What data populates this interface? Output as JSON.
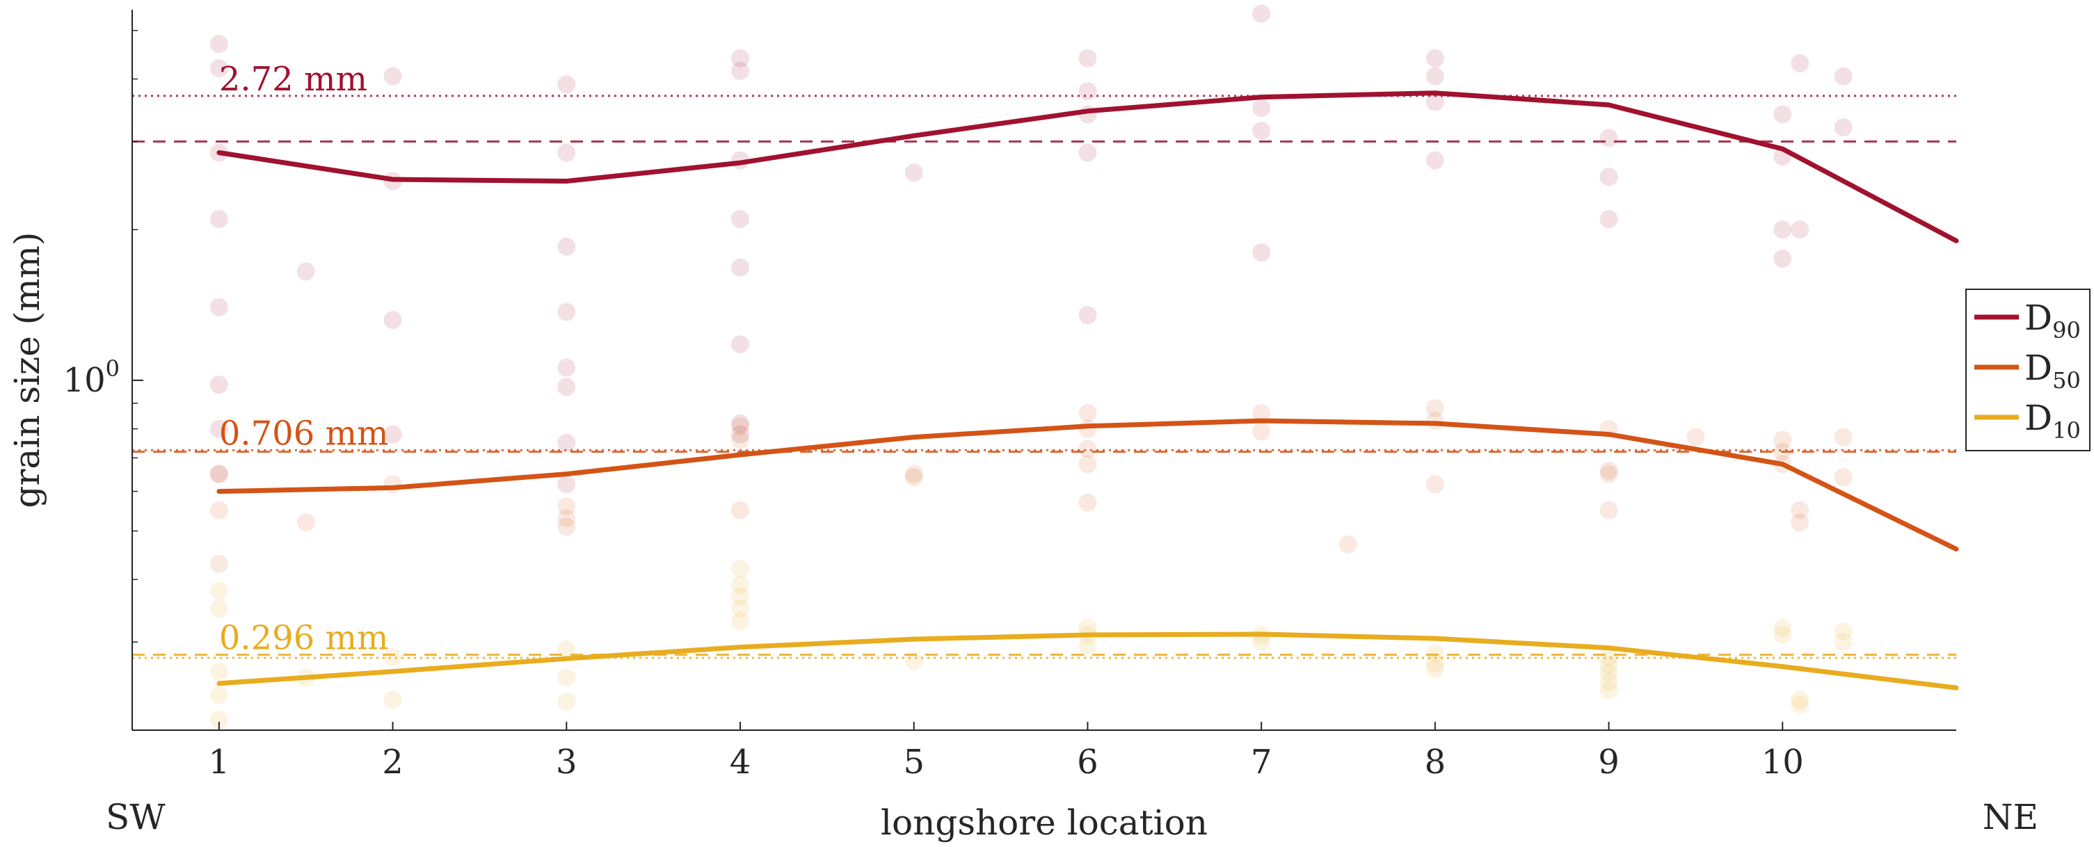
{
  "chart_data": {
    "type": "line",
    "title": "",
    "xlabel": "longshore location",
    "ylabel": "grain size (mm)",
    "x_end_labels": {
      "left": "SW",
      "right": "NE"
    },
    "x": [
      1,
      2,
      3,
      4,
      5,
      6,
      7,
      8,
      9,
      10,
      11
    ],
    "x_ticks": [
      1,
      2,
      3,
      4,
      5,
      6,
      7,
      8,
      9,
      10
    ],
    "xlim": [
      0.5,
      11
    ],
    "y_scale": "log",
    "ylim": [
      0.2,
      5.5
    ],
    "y_ticks": [
      {
        "value": 1,
        "label_base": "10",
        "label_exp": "0"
      }
    ],
    "grid": false,
    "legend_position": "right",
    "series": [
      {
        "key": "D90",
        "name_base": "D",
        "name_sub": "90",
        "color": "#a0122f",
        "values": [
          2.85,
          2.52,
          2.5,
          2.72,
          3.08,
          3.45,
          3.68,
          3.75,
          3.55,
          2.9,
          1.9
        ],
        "reference": {
          "label": "2.72 mm",
          "dashed_value": 3.0,
          "dotted_value": 3.7
        },
        "samples": [
          {
            "x": 1,
            "y": 4.7
          },
          {
            "x": 1,
            "y": 4.2
          },
          {
            "x": 1,
            "y": 2.85
          },
          {
            "x": 1,
            "y": 2.1
          },
          {
            "x": 1,
            "y": 1.4
          },
          {
            "x": 1,
            "y": 0.98
          },
          {
            "x": 1,
            "y": 0.8
          },
          {
            "x": 1,
            "y": 0.65
          },
          {
            "x": 1.5,
            "y": 1.65
          },
          {
            "x": 2,
            "y": 4.05
          },
          {
            "x": 2,
            "y": 2.5
          },
          {
            "x": 2,
            "y": 1.32
          },
          {
            "x": 2,
            "y": 0.78
          },
          {
            "x": 3,
            "y": 3.9
          },
          {
            "x": 3,
            "y": 2.85
          },
          {
            "x": 3,
            "y": 1.85
          },
          {
            "x": 3,
            "y": 1.37
          },
          {
            "x": 3,
            "y": 1.06
          },
          {
            "x": 3,
            "y": 0.97
          },
          {
            "x": 3,
            "y": 0.75
          },
          {
            "x": 3,
            "y": 0.62
          },
          {
            "x": 4,
            "y": 4.4
          },
          {
            "x": 4,
            "y": 4.15
          },
          {
            "x": 4,
            "y": 2.75
          },
          {
            "x": 4,
            "y": 2.1
          },
          {
            "x": 4,
            "y": 1.68
          },
          {
            "x": 4,
            "y": 1.18
          },
          {
            "x": 4,
            "y": 0.82
          },
          {
            "x": 4,
            "y": 0.78
          },
          {
            "x": 5,
            "y": 2.6
          },
          {
            "x": 6,
            "y": 4.4
          },
          {
            "x": 6,
            "y": 3.78
          },
          {
            "x": 6,
            "y": 3.4
          },
          {
            "x": 6,
            "y": 2.85
          },
          {
            "x": 6,
            "y": 1.35
          },
          {
            "x": 7,
            "y": 5.4
          },
          {
            "x": 7,
            "y": 3.5
          },
          {
            "x": 7,
            "y": 3.15
          },
          {
            "x": 7,
            "y": 1.8
          },
          {
            "x": 8,
            "y": 4.4
          },
          {
            "x": 8,
            "y": 4.05
          },
          {
            "x": 8,
            "y": 3.6
          },
          {
            "x": 8,
            "y": 2.75
          },
          {
            "x": 9,
            "y": 3.05
          },
          {
            "x": 9,
            "y": 2.55
          },
          {
            "x": 9,
            "y": 2.1
          },
          {
            "x": 10,
            "y": 3.4
          },
          {
            "x": 10,
            "y": 2.8
          },
          {
            "x": 10,
            "y": 2.0
          },
          {
            "x": 10,
            "y": 1.75
          },
          {
            "x": 10.1,
            "y": 4.3
          },
          {
            "x": 10.1,
            "y": 2.0
          },
          {
            "x": 10.35,
            "y": 4.05
          },
          {
            "x": 10.35,
            "y": 3.2
          }
        ]
      },
      {
        "key": "D50",
        "name_base": "D",
        "name_sub": "50",
        "color": "#d45316",
        "values": [
          0.6,
          0.61,
          0.65,
          0.71,
          0.77,
          0.81,
          0.83,
          0.82,
          0.78,
          0.68,
          0.46
        ],
        "reference": {
          "label": "0.706 mm",
          "dashed_value": 0.72,
          "dotted_value": 0.725
        },
        "samples": [
          {
            "x": 1,
            "y": 0.65
          },
          {
            "x": 1,
            "y": 0.55
          },
          {
            "x": 1,
            "y": 0.43
          },
          {
            "x": 1.5,
            "y": 0.52
          },
          {
            "x": 2,
            "y": 0.62
          },
          {
            "x": 3,
            "y": 0.56
          },
          {
            "x": 3,
            "y": 0.53
          },
          {
            "x": 3,
            "y": 0.51
          },
          {
            "x": 4,
            "y": 0.81
          },
          {
            "x": 4,
            "y": 0.76
          },
          {
            "x": 4,
            "y": 0.55
          },
          {
            "x": 5,
            "y": 0.65
          },
          {
            "x": 5,
            "y": 0.64
          },
          {
            "x": 6,
            "y": 0.86
          },
          {
            "x": 6,
            "y": 0.8
          },
          {
            "x": 6,
            "y": 0.73
          },
          {
            "x": 6,
            "y": 0.68
          },
          {
            "x": 6,
            "y": 0.57
          },
          {
            "x": 7,
            "y": 0.86
          },
          {
            "x": 7,
            "y": 0.79
          },
          {
            "x": 7.5,
            "y": 0.47
          },
          {
            "x": 8,
            "y": 0.88
          },
          {
            "x": 8,
            "y": 0.83
          },
          {
            "x": 8,
            "y": 0.62
          },
          {
            "x": 9,
            "y": 0.8
          },
          {
            "x": 9,
            "y": 0.66
          },
          {
            "x": 9,
            "y": 0.65
          },
          {
            "x": 9,
            "y": 0.55
          },
          {
            "x": 9.5,
            "y": 0.77
          },
          {
            "x": 10,
            "y": 0.76
          },
          {
            "x": 10,
            "y": 0.72
          },
          {
            "x": 10,
            "y": 0.68
          },
          {
            "x": 10.1,
            "y": 0.55
          },
          {
            "x": 10.1,
            "y": 0.52
          },
          {
            "x": 10.35,
            "y": 0.77
          },
          {
            "x": 10.35,
            "y": 0.64
          }
        ]
      },
      {
        "key": "D10",
        "name_base": "D",
        "name_sub": "10",
        "color": "#e8ac1e",
        "values": [
          0.248,
          0.262,
          0.278,
          0.293,
          0.304,
          0.31,
          0.311,
          0.305,
          0.292,
          0.268,
          0.243
        ],
        "reference": {
          "label": "0.296 mm",
          "dashed_value": 0.283,
          "dotted_value": 0.279
        },
        "samples": [
          {
            "x": 1,
            "y": 0.38
          },
          {
            "x": 1,
            "y": 0.35
          },
          {
            "x": 1,
            "y": 0.262
          },
          {
            "x": 1,
            "y": 0.235
          },
          {
            "x": 1,
            "y": 0.21
          },
          {
            "x": 1.5,
            "y": 0.255
          },
          {
            "x": 2,
            "y": 0.28
          },
          {
            "x": 2,
            "y": 0.23
          },
          {
            "x": 3,
            "y": 0.29
          },
          {
            "x": 3,
            "y": 0.255
          },
          {
            "x": 3,
            "y": 0.228
          },
          {
            "x": 4,
            "y": 0.42
          },
          {
            "x": 4,
            "y": 0.39
          },
          {
            "x": 4,
            "y": 0.37
          },
          {
            "x": 4,
            "y": 0.35
          },
          {
            "x": 4,
            "y": 0.33
          },
          {
            "x": 5,
            "y": 0.275
          },
          {
            "x": 6,
            "y": 0.32
          },
          {
            "x": 6,
            "y": 0.31
          },
          {
            "x": 6,
            "y": 0.295
          },
          {
            "x": 7,
            "y": 0.31
          },
          {
            "x": 7,
            "y": 0.3
          },
          {
            "x": 8,
            "y": 0.285
          },
          {
            "x": 8,
            "y": 0.272
          },
          {
            "x": 8,
            "y": 0.265
          },
          {
            "x": 9,
            "y": 0.28
          },
          {
            "x": 9,
            "y": 0.27
          },
          {
            "x": 9,
            "y": 0.26
          },
          {
            "x": 9,
            "y": 0.25
          },
          {
            "x": 9,
            "y": 0.24
          },
          {
            "x": 10,
            "y": 0.32
          },
          {
            "x": 10,
            "y": 0.31
          },
          {
            "x": 10.1,
            "y": 0.23
          },
          {
            "x": 10.1,
            "y": 0.225
          },
          {
            "x": 10.35,
            "y": 0.315
          },
          {
            "x": 10.35,
            "y": 0.3
          }
        ]
      }
    ]
  }
}
